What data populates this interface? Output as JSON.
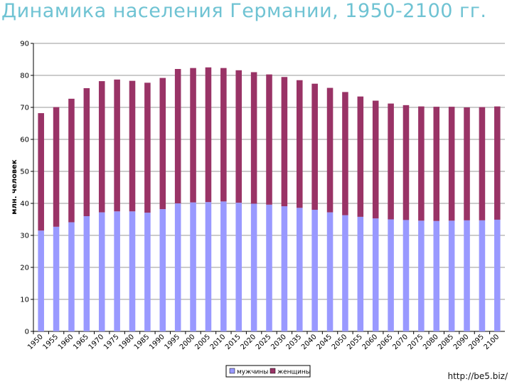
{
  "page": {
    "title": "Динамика населения Германии, 1950-2100 гг.",
    "source_url": "http://be5.biz/"
  },
  "colors": {
    "men": "#9999ff",
    "women": "#993366",
    "title": "#6fc3d3",
    "gridline": "#9a9a9a"
  },
  "chart_data": {
    "type": "bar",
    "stacked": true,
    "title": "",
    "xlabel": "",
    "ylabel": "млн. человек",
    "ylim": [
      0,
      90
    ],
    "yticks": [
      0,
      10,
      20,
      30,
      40,
      50,
      60,
      70,
      80,
      90
    ],
    "grid": true,
    "legend_position": "bottom-center",
    "categories": [
      "1950",
      "1955",
      "1960",
      "1965",
      "1970",
      "1975",
      "1980",
      "1985",
      "1990",
      "1995",
      "2000",
      "2005",
      "2010",
      "2015",
      "2020",
      "2025",
      "2030",
      "2035",
      "2040",
      "2045",
      "2050",
      "2055",
      "2060",
      "2065",
      "2070",
      "2075",
      "2080",
      "2085",
      "2090",
      "2095",
      "2100"
    ],
    "series": [
      {
        "name": "мужчины",
        "values": [
          31.5,
          32.7,
          34.1,
          36,
          37.2,
          37.5,
          37.5,
          37.1,
          38.2,
          40,
          40.3,
          40.4,
          40.6,
          40.2,
          39.9,
          39.6,
          39.1,
          38.6,
          38,
          37.2,
          36.3,
          35.8,
          35.3,
          35,
          34.8,
          34.6,
          34.5,
          34.6,
          34.7,
          34.7,
          34.9
        ]
      },
      {
        "name": "женщины",
        "values": [
          36.7,
          37.4,
          38.6,
          40,
          41,
          41.2,
          40.8,
          40.6,
          41,
          42,
          42,
          42.1,
          41.7,
          41.4,
          41.1,
          40.7,
          40.4,
          39.9,
          39.4,
          38.9,
          38.5,
          37.6,
          36.8,
          36.2,
          35.9,
          35.7,
          35.7,
          35.6,
          35.3,
          35.4,
          35.4
        ]
      }
    ]
  }
}
